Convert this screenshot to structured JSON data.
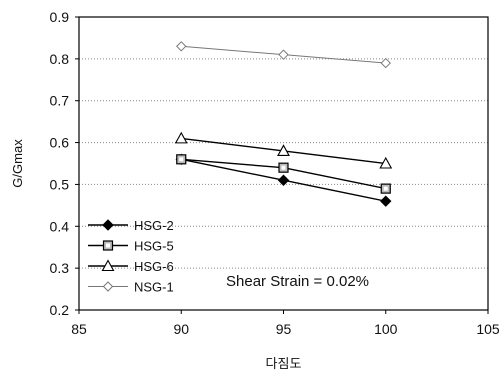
{
  "chart_data": {
    "type": "line",
    "xlabel": "다짐도",
    "ylabel": "G/Gmax",
    "xlim": [
      85,
      105
    ],
    "ylim": [
      0.2,
      0.9
    ],
    "x_ticks": [
      "85",
      "90",
      "95",
      "100",
      "105"
    ],
    "y_ticks": [
      "0.2",
      "0.3",
      "0.4",
      "0.5",
      "0.6",
      "0.7",
      "0.8",
      "0.9"
    ],
    "grid": "horizontal dotted",
    "legend_placement": "bottom-left",
    "annotation": "Shear Strain = 0.02%",
    "series": [
      {
        "name": "HSG-2",
        "marker": "diamond-filled",
        "color": "#000000",
        "x": [
          90,
          95,
          100
        ],
        "y": [
          0.56,
          0.51,
          0.46
        ]
      },
      {
        "name": "HSG-5",
        "marker": "square-gray",
        "color": "#000000",
        "x": [
          90,
          95,
          100
        ],
        "y": [
          0.56,
          0.54,
          0.49
        ]
      },
      {
        "name": "HSG-6",
        "marker": "triangle-open",
        "color": "#000000",
        "x": [
          90,
          95,
          100
        ],
        "y": [
          0.61,
          0.58,
          0.55
        ]
      },
      {
        "name": "NSG-1",
        "marker": "diamond-open",
        "color": "#777777",
        "x": [
          90,
          95,
          100
        ],
        "y": [
          0.83,
          0.81,
          0.79
        ]
      }
    ]
  }
}
